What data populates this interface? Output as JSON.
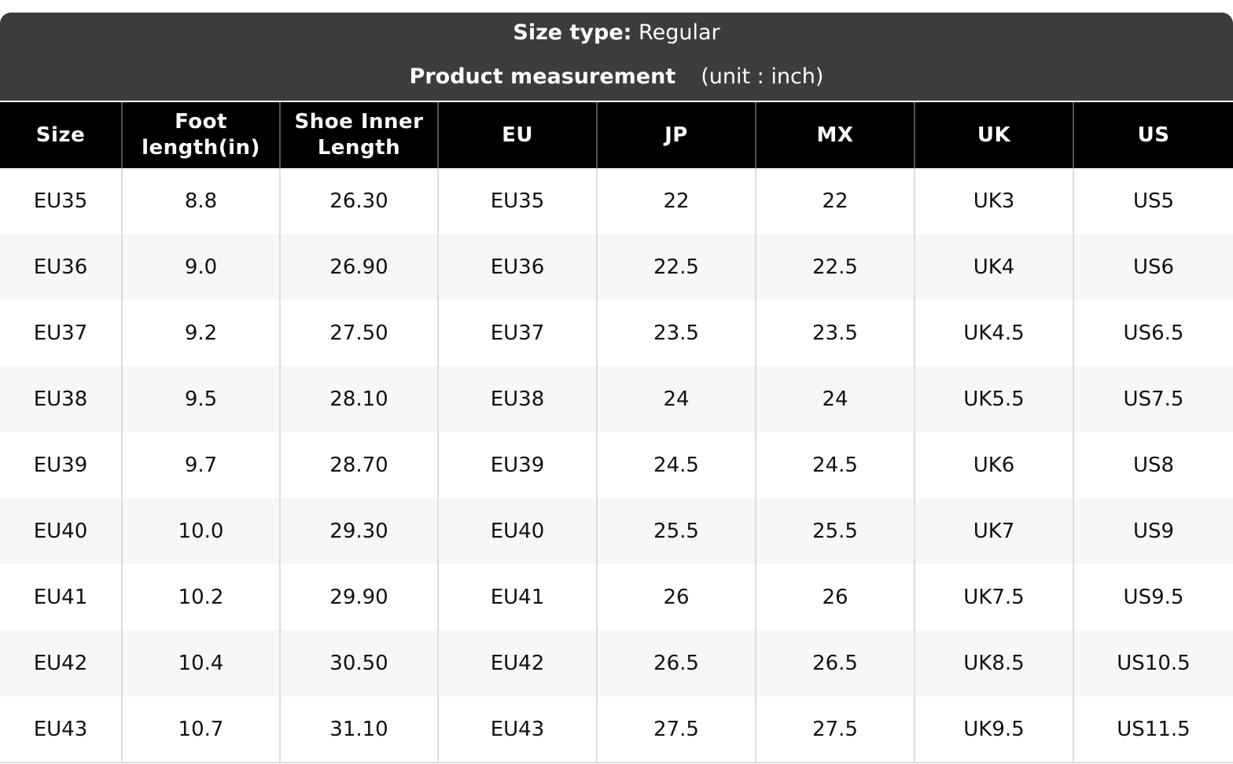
{
  "header": {
    "size_type_label": "Size type:",
    "size_type_value": "Regular",
    "measurement_label": "Product measurement",
    "unit": "(unit : inch)"
  },
  "table": {
    "columns": [
      "Size",
      "Foot length(in)",
      "Shoe Inner Length",
      "EU",
      "JP",
      "MX",
      "UK",
      "US"
    ],
    "rows": [
      [
        "EU35",
        "8.8",
        "26.30",
        "EU35",
        "22",
        "22",
        "UK3",
        "US5"
      ],
      [
        "EU36",
        "9.0",
        "26.90",
        "EU36",
        "22.5",
        "22.5",
        "UK4",
        "US6"
      ],
      [
        "EU37",
        "9.2",
        "27.50",
        "EU37",
        "23.5",
        "23.5",
        "UK4.5",
        "US6.5"
      ],
      [
        "EU38",
        "9.5",
        "28.10",
        "EU38",
        "24",
        "24",
        "UK5.5",
        "US7.5"
      ],
      [
        "EU39",
        "9.7",
        "28.70",
        "EU39",
        "24.5",
        "24.5",
        "UK6",
        "US8"
      ],
      [
        "EU40",
        "10.0",
        "29.30",
        "EU40",
        "25.5",
        "25.5",
        "UK7",
        "US9"
      ],
      [
        "EU41",
        "10.2",
        "29.90",
        "EU41",
        "26",
        "26",
        "UK7.5",
        "US9.5"
      ],
      [
        "EU42",
        "10.4",
        "30.50",
        "EU42",
        "26.5",
        "26.5",
        "UK8.5",
        "US10.5"
      ],
      [
        "EU43",
        "10.7",
        "31.10",
        "EU43",
        "27.5",
        "27.5",
        "UK9.5",
        "US11.5"
      ]
    ]
  }
}
